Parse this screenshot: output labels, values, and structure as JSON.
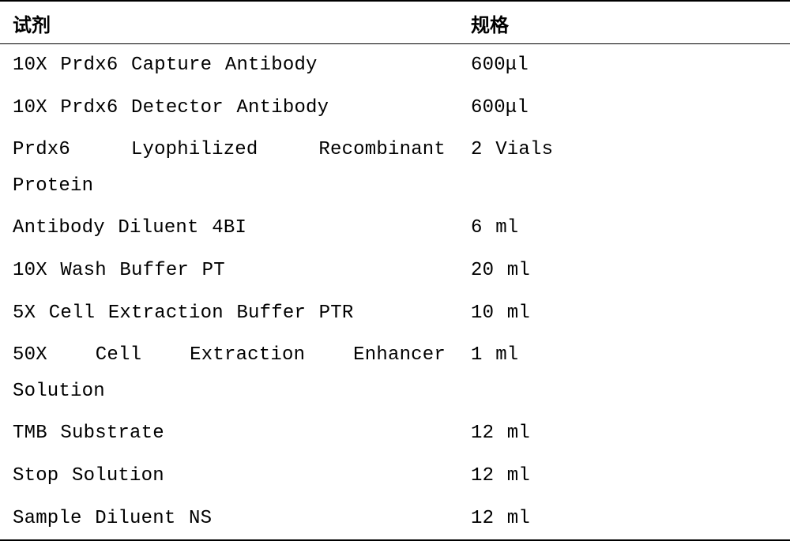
{
  "table": {
    "type": "table",
    "background_color": "#ffffff",
    "border_color": "#000000",
    "header_font_family": "SimHei",
    "header_fontsize": 24,
    "header_fontweight": "bold",
    "body_font_family": "Courier New",
    "body_fontsize": 24,
    "text_color": "#000000",
    "column_widths": [
      "58%",
      "42%"
    ],
    "columns": [
      "试剂",
      "规格"
    ],
    "rows": [
      {
        "reagent": "10X Prdx6 Capture Antibody",
        "spec": "600μl"
      },
      {
        "reagent": "10X Prdx6 Detector Antibody",
        "spec": "600μl"
      },
      {
        "reagent": "Prdx6 Lyophilized Recombinant Protein",
        "reagent_line1": "Prdx6   Lyophilized   Recombinant",
        "reagent_line2": "Protein",
        "spec": "2 Vials"
      },
      {
        "reagent": "Antibody Diluent 4BI",
        "spec": "6 ml"
      },
      {
        "reagent": "10X Wash Buffer PT",
        "spec": "20 ml"
      },
      {
        "reagent": "5X Cell Extraction Buffer PTR",
        "spec": "10 ml"
      },
      {
        "reagent": "50X Cell Extraction Enhancer Solution",
        "reagent_line1": "50X  Cell  Extraction  Enhancer",
        "reagent_line2": "Solution",
        "spec": "1 ml"
      },
      {
        "reagent": "TMB Substrate",
        "spec": "12 ml"
      },
      {
        "reagent": "Stop Solution",
        "spec": "12 ml"
      },
      {
        "reagent": "Sample Diluent NS",
        "spec": "12 ml"
      }
    ]
  }
}
